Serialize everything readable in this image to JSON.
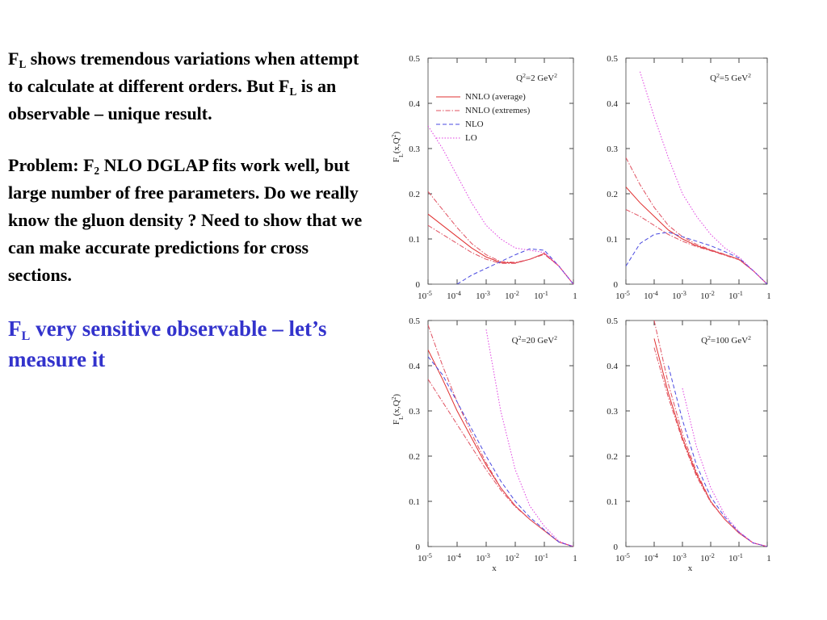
{
  "text": {
    "paragraphs": [
      {
        "segments": [
          {
            "t": "F"
          },
          {
            "t": "L",
            "sub": true
          },
          {
            "t": " shows tremendous variations when attempt to calculate at different orders.  But F"
          },
          {
            "t": "L",
            "sub": true
          },
          {
            "t": " is an observable – unique result."
          }
        ],
        "color": "#000000"
      },
      {
        "segments": [
          {
            "t": "Problem: F"
          },
          {
            "t": "2",
            "sub": true
          },
          {
            "t": " NLO DGLAP fits work well, but large number of free parameters.  Do we really know the gluon density ?  Need to show that we can make accurate predictions for cross sections."
          }
        ],
        "color": "#000000"
      },
      {
        "segments": [
          {
            "t": "F"
          },
          {
            "t": "L",
            "sub": true
          },
          {
            "t": " very sensitive observable – let’s measure it"
          }
        ],
        "color": "#3333cc",
        "large": true
      }
    ]
  },
  "chart_data": [
    {
      "type": "line",
      "title": [
        {
          "t": "Q"
        },
        {
          "t": "2",
          "sup": true
        },
        {
          "t": "=2 GeV"
        },
        {
          "t": "2",
          "sup": true
        }
      ],
      "ylabel": [
        {
          "t": "F"
        },
        {
          "t": "L",
          "sub": true
        },
        {
          "t": "(x,Q"
        },
        {
          "t": "2",
          "sup": true
        },
        {
          "t": ")"
        }
      ],
      "xscale": "log",
      "xlim": [
        1e-05,
        1
      ],
      "ylim": [
        0,
        0.5
      ],
      "xticks": [
        {
          "value": 1e-05,
          "label": "10",
          "exp": "-5"
        },
        {
          "value": 0.0001,
          "label": "10",
          "exp": "-4"
        },
        {
          "value": 0.001,
          "label": "10",
          "exp": "-3"
        },
        {
          "value": 0.01,
          "label": "10",
          "exp": "-2"
        },
        {
          "value": 0.1,
          "label": "10",
          "exp": "-1"
        },
        1
      ],
      "yticks": [
        0,
        0.1,
        0.2,
        0.3,
        0.4,
        0.5
      ],
      "legend": "upper left",
      "x": [
        1e-05,
        3.16e-05,
        0.0001,
        0.000316,
        0.001,
        0.00316,
        0.01,
        0.0316,
        0.1,
        0.316,
        1
      ],
      "series": [
        {
          "name": "NNLO (average)",
          "color": "#e03030",
          "dash": "solid",
          "values": [
            0.155,
            0.13,
            0.105,
            0.08,
            0.06,
            0.048,
            0.047,
            0.055,
            0.068,
            0.04,
            0
          ]
        },
        {
          "name": "NNLO (extremes)",
          "color": "#e05060",
          "dash": "dashdot",
          "values": [
            0.205,
            0.165,
            0.125,
            0.09,
            0.065,
            0.05,
            0.048,
            0.055,
            0.068,
            0.04,
            0
          ]
        },
        {
          "color": "#e05060",
          "dash": "dashdot",
          "values": [
            0.13,
            0.11,
            0.09,
            0.07,
            0.055,
            0.046,
            0.046,
            0.055,
            0.066,
            0.04,
            0
          ]
        },
        {
          "name": "NLO",
          "color": "#4a4ae0",
          "dash": "dashed",
          "values": [
            null,
            null,
            0.0,
            0.02,
            0.035,
            0.05,
            0.065,
            0.078,
            0.075,
            0.04,
            0
          ]
        },
        {
          "name": "LO",
          "color": "#e040e0",
          "dash": "dotted",
          "values": [
            0.35,
            0.3,
            0.24,
            0.18,
            0.13,
            0.1,
            0.08,
            0.075,
            0.07,
            0.04,
            0
          ]
        }
      ]
    },
    {
      "type": "line",
      "title": [
        {
          "t": "Q"
        },
        {
          "t": "2",
          "sup": true
        },
        {
          "t": "=5 GeV"
        },
        {
          "t": "2",
          "sup": true
        }
      ],
      "xscale": "log",
      "xlim": [
        1e-05,
        1
      ],
      "ylim": [
        0,
        0.5
      ],
      "xticks": [
        {
          "value": 1e-05,
          "label": "10",
          "exp": "-5"
        },
        {
          "value": 0.0001,
          "label": "10",
          "exp": "-4"
        },
        {
          "value": 0.001,
          "label": "10",
          "exp": "-3"
        },
        {
          "value": 0.01,
          "label": "10",
          "exp": "-2"
        },
        {
          "value": 0.1,
          "label": "10",
          "exp": "-1"
        },
        1
      ],
      "yticks": [
        0,
        0.1,
        0.2,
        0.3,
        0.4,
        0.5
      ],
      "x": [
        1e-05,
        3.16e-05,
        0.0001,
        0.000316,
        0.001,
        0.00316,
        0.01,
        0.0316,
        0.1,
        0.316,
        1
      ],
      "series": [
        {
          "color": "#e03030",
          "dash": "solid",
          "values": [
            0.215,
            0.18,
            0.15,
            0.12,
            0.1,
            0.085,
            0.075,
            0.065,
            0.055,
            0.03,
            0
          ]
        },
        {
          "color": "#e05060",
          "dash": "dashdot",
          "values": [
            0.28,
            0.22,
            0.17,
            0.13,
            0.105,
            0.088,
            0.076,
            0.066,
            0.055,
            0.03,
            0
          ]
        },
        {
          "color": "#e05060",
          "dash": "dashdot",
          "values": [
            0.165,
            0.15,
            0.13,
            0.11,
            0.095,
            0.083,
            0.074,
            0.064,
            0.054,
            0.03,
            0
          ]
        },
        {
          "color": "#4a4ae0",
          "dash": "dashed",
          "values": [
            0.04,
            0.09,
            0.11,
            0.115,
            0.105,
            0.095,
            0.085,
            0.072,
            0.058,
            0.03,
            0
          ]
        },
        {
          "color": "#e040e0",
          "dash": "dotted",
          "values": [
            null,
            0.47,
            0.37,
            0.28,
            0.2,
            0.15,
            0.11,
            0.08,
            0.06,
            0.03,
            0
          ]
        }
      ]
    },
    {
      "type": "line",
      "title": [
        {
          "t": "Q"
        },
        {
          "t": "2",
          "sup": true
        },
        {
          "t": "=20 GeV"
        },
        {
          "t": "2",
          "sup": true
        }
      ],
      "ylabel": [
        {
          "t": "F"
        },
        {
          "t": "L",
          "sub": true
        },
        {
          "t": "(x,Q"
        },
        {
          "t": "2",
          "sup": true
        },
        {
          "t": ")"
        }
      ],
      "xlabel": "x",
      "xscale": "log",
      "xlim": [
        1e-05,
        1
      ],
      "ylim": [
        0,
        0.5
      ],
      "xticks": [
        {
          "value": 1e-05,
          "label": "10",
          "exp": "-5"
        },
        {
          "value": 0.0001,
          "label": "10",
          "exp": "-4"
        },
        {
          "value": 0.001,
          "label": "10",
          "exp": "-3"
        },
        {
          "value": 0.01,
          "label": "10",
          "exp": "-2"
        },
        {
          "value": 0.1,
          "label": "10",
          "exp": "-1"
        },
        1
      ],
      "yticks": [
        0,
        0.1,
        0.2,
        0.3,
        0.4,
        0.5
      ],
      "x": [
        1e-05,
        3.16e-05,
        0.0001,
        0.000316,
        0.001,
        0.00316,
        0.01,
        0.0316,
        0.1,
        0.316,
        1
      ],
      "series": [
        {
          "color": "#e03030",
          "dash": "solid",
          "values": [
            0.435,
            0.37,
            0.3,
            0.24,
            0.18,
            0.13,
            0.09,
            0.06,
            0.035,
            0.01,
            0
          ]
        },
        {
          "color": "#e05060",
          "dash": "dashdot",
          "values": [
            0.49,
            0.4,
            0.32,
            0.25,
            0.185,
            0.13,
            0.09,
            0.06,
            0.035,
            0.01,
            0
          ]
        },
        {
          "color": "#e05060",
          "dash": "dashdot",
          "values": [
            0.37,
            0.32,
            0.27,
            0.22,
            0.17,
            0.125,
            0.088,
            0.06,
            0.035,
            0.01,
            0
          ]
        },
        {
          "color": "#4a4ae0",
          "dash": "dashed",
          "values": [
            0.42,
            0.38,
            0.32,
            0.26,
            0.2,
            0.145,
            0.1,
            0.065,
            0.037,
            0.01,
            0
          ]
        },
        {
          "color": "#e040e0",
          "dash": "dotted",
          "values": [
            null,
            null,
            null,
            null,
            0.48,
            0.3,
            0.17,
            0.09,
            0.045,
            0.012,
            0
          ]
        }
      ]
    },
    {
      "type": "line",
      "title": [
        {
          "t": "Q"
        },
        {
          "t": "2",
          "sup": true
        },
        {
          "t": "=100 GeV"
        },
        {
          "t": "2",
          "sup": true
        }
      ],
      "xlabel": "x",
      "xscale": "log",
      "xlim": [
        1e-05,
        1
      ],
      "ylim": [
        0,
        0.5
      ],
      "xticks": [
        {
          "value": 1e-05,
          "label": "10",
          "exp": "-5"
        },
        {
          "value": 0.0001,
          "label": "10",
          "exp": "-4"
        },
        {
          "value": 0.001,
          "label": "10",
          "exp": "-3"
        },
        {
          "value": 0.01,
          "label": "10",
          "exp": "-2"
        },
        {
          "value": 0.1,
          "label": "10",
          "exp": "-1"
        },
        1
      ],
      "yticks": [
        0,
        0.1,
        0.2,
        0.3,
        0.4,
        0.5
      ],
      "x": [
        1e-05,
        3.16e-05,
        0.0001,
        0.000316,
        0.001,
        0.00316,
        0.01,
        0.0316,
        0.1,
        0.316,
        1
      ],
      "series": [
        {
          "color": "#e03030",
          "dash": "solid",
          "values": [
            null,
            null,
            0.46,
            0.34,
            0.24,
            0.16,
            0.1,
            0.06,
            0.03,
            0.008,
            0
          ]
        },
        {
          "color": "#e05060",
          "dash": "dashdot",
          "values": [
            null,
            null,
            0.5,
            0.36,
            0.25,
            0.165,
            0.1,
            0.06,
            0.03,
            0.008,
            0
          ]
        },
        {
          "color": "#e05060",
          "dash": "dashdot",
          "values": [
            null,
            null,
            0.44,
            0.33,
            0.235,
            0.155,
            0.098,
            0.06,
            0.03,
            0.008,
            0
          ]
        },
        {
          "color": "#4a4ae0",
          "dash": "dashed",
          "values": [
            null,
            null,
            null,
            0.4,
            0.28,
            0.18,
            0.11,
            0.065,
            0.032,
            0.008,
            0
          ]
        },
        {
          "color": "#e040e0",
          "dash": "dotted",
          "values": [
            null,
            null,
            null,
            null,
            0.35,
            0.22,
            0.13,
            0.07,
            0.033,
            0.008,
            0
          ]
        }
      ]
    }
  ]
}
